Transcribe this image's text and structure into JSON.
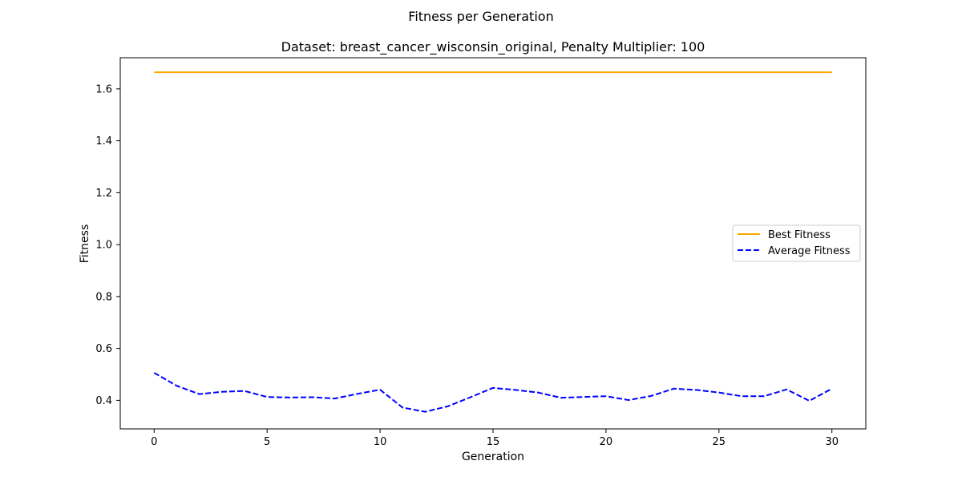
{
  "figure": {
    "suptitle": "Fitness per Generation"
  },
  "chart_data": {
    "type": "line",
    "title": "Dataset: breast_cancer_wisconsin_original, Penalty Multiplier: 100",
    "xlabel": "Generation",
    "ylabel": "Fitness",
    "xlim": [
      -1.5,
      31.5
    ],
    "ylim": [
      0.29,
      1.72
    ],
    "xticks": [
      0,
      5,
      10,
      15,
      20,
      25,
      30
    ],
    "yticks": [
      0.4,
      0.6,
      0.8,
      1.0,
      1.2,
      1.4,
      1.6
    ],
    "grid": false,
    "legend_position": "right",
    "x": [
      0,
      1,
      2,
      3,
      4,
      5,
      6,
      7,
      8,
      9,
      10,
      11,
      12,
      13,
      14,
      15,
      16,
      17,
      18,
      19,
      20,
      21,
      22,
      23,
      24,
      25,
      26,
      27,
      28,
      29,
      30
    ],
    "series": [
      {
        "name": "Best Fitness",
        "color": "#ffa500",
        "style": "solid",
        "values": [
          1.664,
          1.664,
          1.664,
          1.664,
          1.664,
          1.664,
          1.664,
          1.664,
          1.664,
          1.664,
          1.664,
          1.664,
          1.664,
          1.664,
          1.664,
          1.664,
          1.664,
          1.664,
          1.664,
          1.664,
          1.664,
          1.664,
          1.664,
          1.664,
          1.664,
          1.664,
          1.664,
          1.664,
          1.664,
          1.664,
          1.664
        ]
      },
      {
        "name": "Average Fitness",
        "color": "#0000ff",
        "style": "dashed",
        "values": [
          0.506,
          0.456,
          0.424,
          0.433,
          0.436,
          0.413,
          0.411,
          0.412,
          0.407,
          0.425,
          0.441,
          0.372,
          0.356,
          0.377,
          0.412,
          0.448,
          0.44,
          0.43,
          0.41,
          0.413,
          0.416,
          0.401,
          0.417,
          0.445,
          0.44,
          0.43,
          0.416,
          0.416,
          0.442,
          0.398,
          0.445
        ]
      }
    ]
  }
}
